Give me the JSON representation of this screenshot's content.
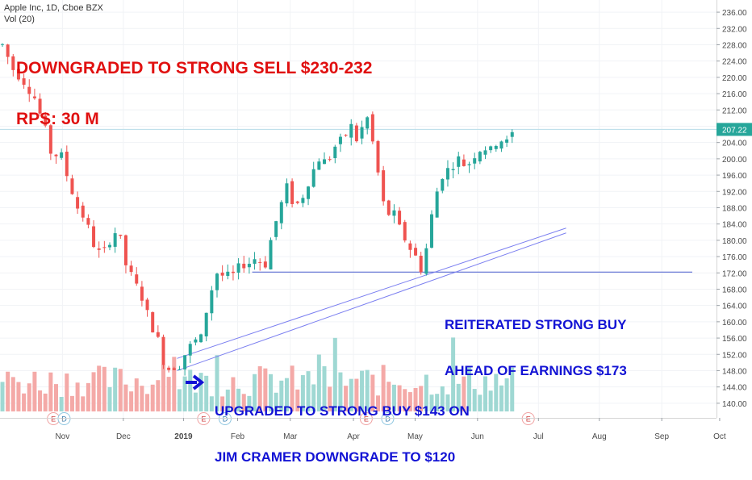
{
  "header": {
    "symbol_line": "Apple Inc, 1D, Cboe BZX",
    "indicator_line": "Vol (20)"
  },
  "annotations": {
    "downgrade_line1": "DOWNGRADED TO STRONG SELL $230-232",
    "downgrade_line2": "RPS: 30 M",
    "reiterated_line1": "REITERATED STRONG BUY",
    "reiterated_line2": "AHEAD OF EARNINGS $173",
    "upgraded_line1": "UPGRADED TO STRONG BUY $143 ON",
    "upgraded_line2": "JIM CRAMER DOWNGRADE TO $120"
  },
  "colors": {
    "up": "#26a69a",
    "down": "#ef5350",
    "vol_up": "#9fd8d3",
    "vol_down": "#f4a9a7",
    "trendline": "#7b7ff0",
    "support": "#4a5fd0",
    "last_price_line": "#b7dce8",
    "last_price_bg": "#26a69a"
  },
  "chart_data": {
    "type": "candlestick",
    "y_ticks": [
      "236.00",
      "232.00",
      "228.00",
      "224.00",
      "220.00",
      "216.00",
      "212.00",
      "208.00",
      "204.00",
      "200.00",
      "196.00",
      "192.00",
      "188.00",
      "184.00",
      "180.00",
      "176.00",
      "172.00",
      "168.00",
      "164.00",
      "160.00",
      "156.00",
      "152.00",
      "148.00",
      "144.00",
      "140.00"
    ],
    "x_ticks": [
      "Nov",
      "Dec",
      "2019",
      "Feb",
      "Mar",
      "Apr",
      "May",
      "Jun",
      "Jul",
      "Aug",
      "Sep",
      "Oct"
    ],
    "ylim": [
      137.2,
      237.6
    ],
    "last_price": "207.22",
    "support_level": 172.2,
    "trend_points": [
      {
        "x": 0.0,
        "y": 228.0
      },
      {
        "x": 2.0,
        "y": 222.0
      },
      {
        "x": 4.0,
        "y": 219.0
      },
      {
        "x": 6.0,
        "y": 215.0
      },
      {
        "x": 8.0,
        "y": 207.0
      },
      {
        "x": 9.5,
        "y": 199.0
      },
      {
        "x": 10.5,
        "y": 203.0
      },
      {
        "x": 12.0,
        "y": 196.0
      },
      {
        "x": 14.0,
        "y": 188.0
      },
      {
        "x": 15.5,
        "y": 185.0
      },
      {
        "x": 17.0,
        "y": 179.0
      },
      {
        "x": 18.5,
        "y": 176.0
      },
      {
        "x": 20.0,
        "y": 180.0
      },
      {
        "x": 21.5,
        "y": 183.0
      },
      {
        "x": 23.0,
        "y": 174.0
      },
      {
        "x": 24.5,
        "y": 170.0
      },
      {
        "x": 26.0,
        "y": 166.0
      },
      {
        "x": 27.5,
        "y": 160.0
      },
      {
        "x": 29.5,
        "y": 154.0
      },
      {
        "x": 30.5,
        "y": 147.0
      },
      {
        "x": 31.5,
        "y": 150.0
      },
      {
        "x": 32.5,
        "y": 148.0
      },
      {
        "x": 34.0,
        "y": 152.0
      },
      {
        "x": 35.5,
        "y": 155.0
      },
      {
        "x": 37.0,
        "y": 156.0
      },
      {
        "x": 38.5,
        "y": 166.0
      },
      {
        "x": 40.0,
        "y": 172.0
      },
      {
        "x": 41.5,
        "y": 171.0
      },
      {
        "x": 43.0,
        "y": 171.5
      },
      {
        "x": 44.5,
        "y": 174.0
      },
      {
        "x": 46.0,
        "y": 174.5
      },
      {
        "x": 47.5,
        "y": 176.0
      },
      {
        "x": 48.8,
        "y": 173.0
      },
      {
        "x": 50.0,
        "y": 180.0
      },
      {
        "x": 51.5,
        "y": 187.0
      },
      {
        "x": 53.0,
        "y": 193.0
      },
      {
        "x": 54.5,
        "y": 188.0
      },
      {
        "x": 56.0,
        "y": 191.0
      },
      {
        "x": 57.5,
        "y": 196.0
      },
      {
        "x": 59.0,
        "y": 200.0
      },
      {
        "x": 60.5,
        "y": 199.0
      },
      {
        "x": 62.0,
        "y": 203.0
      },
      {
        "x": 63.5,
        "y": 205.0
      },
      {
        "x": 65.0,
        "y": 208.0
      },
      {
        "x": 66.5,
        "y": 203.0
      },
      {
        "x": 67.5,
        "y": 212.0
      },
      {
        "x": 68.5,
        "y": 208.0
      },
      {
        "x": 69.5,
        "y": 200.0
      },
      {
        "x": 70.5,
        "y": 193.0
      },
      {
        "x": 71.5,
        "y": 185.0
      },
      {
        "x": 72.5,
        "y": 188.0
      },
      {
        "x": 74.0,
        "y": 183.0
      },
      {
        "x": 75.5,
        "y": 179.0
      },
      {
        "x": 77.0,
        "y": 176.0
      },
      {
        "x": 78.0,
        "y": 173.0
      },
      {
        "x": 79.0,
        "y": 178.0
      },
      {
        "x": 80.5,
        "y": 190.0
      },
      {
        "x": 82.0,
        "y": 196.0
      },
      {
        "x": 83.5,
        "y": 198.0
      },
      {
        "x": 85.0,
        "y": 200.0
      },
      {
        "x": 86.5,
        "y": 198.0
      },
      {
        "x": 88.0,
        "y": 201.0
      },
      {
        "x": 89.5,
        "y": 203.0
      },
      {
        "x": 91.0,
        "y": 202.0
      },
      {
        "x": 92.5,
        "y": 205.0
      },
      {
        "x": 94.0,
        "y": 204.0
      },
      {
        "x": 95.5,
        "y": 207.2
      }
    ],
    "events": [
      {
        "label": "E",
        "x": 9.5,
        "kind": "earnings"
      },
      {
        "label": "D",
        "x": 11.5,
        "kind": "dividend"
      },
      {
        "label": "E",
        "x": 37.5,
        "kind": "earnings"
      },
      {
        "label": "D",
        "x": 41.5,
        "kind": "dividend"
      },
      {
        "label": "E",
        "x": 67.8,
        "kind": "earnings"
      },
      {
        "label": "D",
        "x": 71.8,
        "kind": "dividend"
      },
      {
        "label": "E",
        "x": 98.0,
        "kind": "earnings-future"
      }
    ]
  }
}
